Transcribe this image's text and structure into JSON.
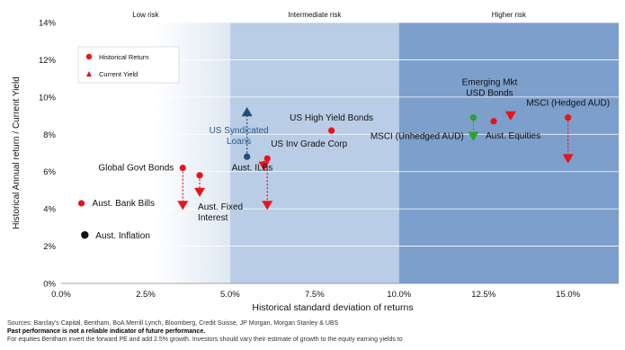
{
  "chart_data": {
    "type": "scatter",
    "xlabel": "Historical standard deviation of returns",
    "ylabel": "Historical Annual return / Current Yield",
    "xlim": [
      0,
      0.165
    ],
    "ylim": [
      0,
      0.14
    ],
    "xticks": [
      {
        "v": 0,
        "label": "0.0%"
      },
      {
        "v": 0.025,
        "label": "2.5%"
      },
      {
        "v": 0.05,
        "label": "5.0%"
      },
      {
        "v": 0.075,
        "label": "7.5%"
      },
      {
        "v": 0.1,
        "label": "10.0%"
      },
      {
        "v": 0.125,
        "label": "12.5%"
      },
      {
        "v": 0.15,
        "label": "15.0%"
      }
    ],
    "yticks": [
      {
        "v": 0,
        "label": "0%"
      },
      {
        "v": 0.02,
        "label": "2%"
      },
      {
        "v": 0.04,
        "label": "4%"
      },
      {
        "v": 0.06,
        "label": "6%"
      },
      {
        "v": 0.08,
        "label": "8%"
      },
      {
        "v": 0.1,
        "label": "10%"
      },
      {
        "v": 0.12,
        "label": "12%"
      },
      {
        "v": 0.14,
        "label": "14%"
      }
    ],
    "grid": "horizontal",
    "legend": {
      "placement": "top-left",
      "items": [
        {
          "label": "Historical Return",
          "marker": "circle",
          "color": "#e8141b"
        },
        {
          "label": "Current Yield",
          "marker": "triangle",
          "color": "#e8141b"
        }
      ]
    },
    "zones": [
      {
        "label": "Low risk",
        "from": 0,
        "to": 0.05
      },
      {
        "label": "Intermediate risk",
        "from": 0.05,
        "to": 0.1
      },
      {
        "label": "Higher risk",
        "from": 0.1,
        "to": 0.165
      }
    ],
    "assets": [
      {
        "name": "Aust. Bank Bills",
        "x": 0.006,
        "historical": 0.043,
        "yield": null,
        "color": "#e8141b"
      },
      {
        "name": "Aust. Inflation",
        "x": 0.007,
        "historical": 0.026,
        "yield": null,
        "color": "#111111"
      },
      {
        "name": "Global Govt Bonds",
        "x": 0.036,
        "historical": 0.062,
        "yield": 0.042,
        "color": "#e8141b"
      },
      {
        "name": "Aust. Fixed Interest",
        "x": 0.041,
        "historical": 0.058,
        "yield": 0.049,
        "color": "#e8141b"
      },
      {
        "name": "US Syndicated Loans",
        "x": 0.055,
        "historical": 0.068,
        "yield": 0.092,
        "color": "#1f4e79"
      },
      {
        "name": "Aust. ILBs",
        "x": 0.06,
        "historical": 0.064,
        "yield": 0.063,
        "color": "#e8141b"
      },
      {
        "name": "US Inv Grade Corp",
        "x": 0.061,
        "historical": 0.067,
        "yield": 0.042,
        "color": "#e8141b"
      },
      {
        "name": "US High Yield Bonds",
        "x": 0.08,
        "historical": 0.082,
        "yield": null,
        "color": "#e8141b"
      },
      {
        "name": "Emerging Mkt USD Bonds",
        "x": 0.122,
        "historical": 0.089,
        "yield": 0.079,
        "color": "#2ca02c"
      },
      {
        "name": "Aust. Equities",
        "x": 0.128,
        "historical": 0.087,
        "yield": null,
        "color": "#e8141b"
      },
      {
        "name": "MSCI (Unhedged AUD)",
        "x": 0.133,
        "historical": null,
        "yield": 0.09,
        "color": "#e8141b"
      },
      {
        "name": "MSCI (Hedged AUD)",
        "x": 0.15,
        "historical": 0.089,
        "yield": 0.067,
        "color": "#e8141b"
      }
    ],
    "colors": {
      "red": "#e8141b",
      "navy": "#1f4e79",
      "green": "#2ca02c",
      "zone_low": "#ffffff",
      "zone_mid": "#b9cde6",
      "zone_high": "#7c9fcc",
      "grid": "#ffffff",
      "label": "#111111",
      "label_blue": "#2e5a8a"
    }
  },
  "footer": {
    "sources": "Sources: Barclay's Capital, Bentham, BoA Merrill Lynch, Bloomberg, Credit Suisse, JP Morgan, Morgan Stanley & UBS",
    "disclaimer": "Past performance is not a reliable indicator of future performance.",
    "note": "For equities Bentham invert the forward PE and add 2.5% growth. Investors should vary their estimate of growth  to the equity earning yields to"
  }
}
